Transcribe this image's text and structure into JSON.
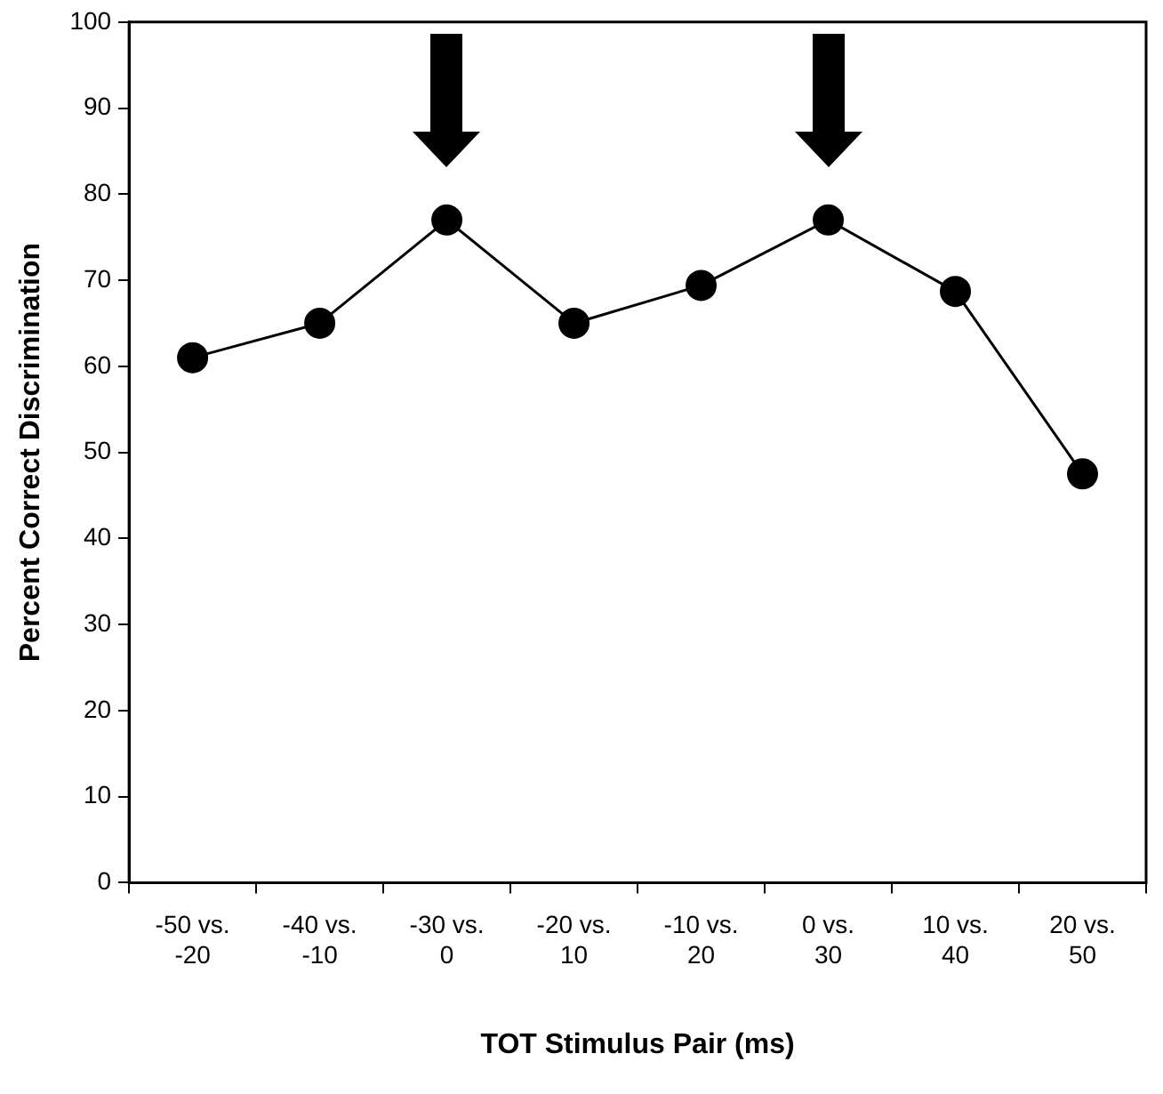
{
  "chart_data": {
    "type": "line",
    "xlabel": "TOT Stimulus Pair (ms)",
    "ylabel": "Percent Correct Discrimination",
    "categories": [
      "-50 vs. -20",
      "-40 vs. -10",
      "-30 vs. 0",
      "-20 vs. 10",
      "-10 vs. 20",
      "0 vs. 30",
      "10 vs. 40",
      "20 vs. 50"
    ],
    "series": [
      {
        "color": "#000000",
        "values": [
          61,
          65,
          77,
          65,
          69.4,
          77,
          68.7,
          47.5
        ]
      }
    ],
    "ylim": [
      0,
      100
    ],
    "yticks": [
      0,
      10,
      20,
      30,
      40,
      50,
      60,
      70,
      80,
      90,
      100
    ],
    "grid": false,
    "legend": false,
    "marker": "circle",
    "line_style": "solid"
  }
}
